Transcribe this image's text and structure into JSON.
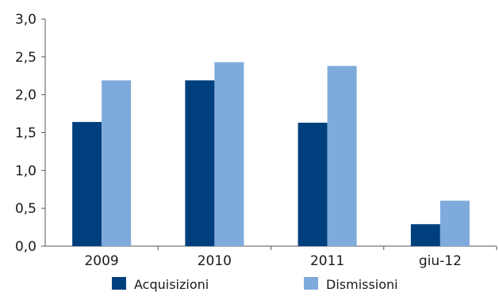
{
  "chart_data": {
    "type": "bar",
    "title": "",
    "xlabel": "",
    "ylabel": "",
    "categories": [
      "2009",
      "2010",
      "2011",
      "giu-12"
    ],
    "series": [
      {
        "name": "Acquisizioni",
        "color": "#003f7d",
        "values": [
          1.64,
          2.19,
          1.63,
          0.29
        ]
      },
      {
        "name": "Dismissioni",
        "color": "#7faadc",
        "values": [
          2.19,
          2.43,
          2.38,
          0.6
        ]
      }
    ],
    "ylim": [
      0,
      3.0
    ],
    "yticks": [
      "0,0",
      "0,5",
      "1,0",
      "1,5",
      "2,0",
      "2,5",
      "3,0"
    ],
    "grid": false,
    "legend_position": "bottom"
  }
}
